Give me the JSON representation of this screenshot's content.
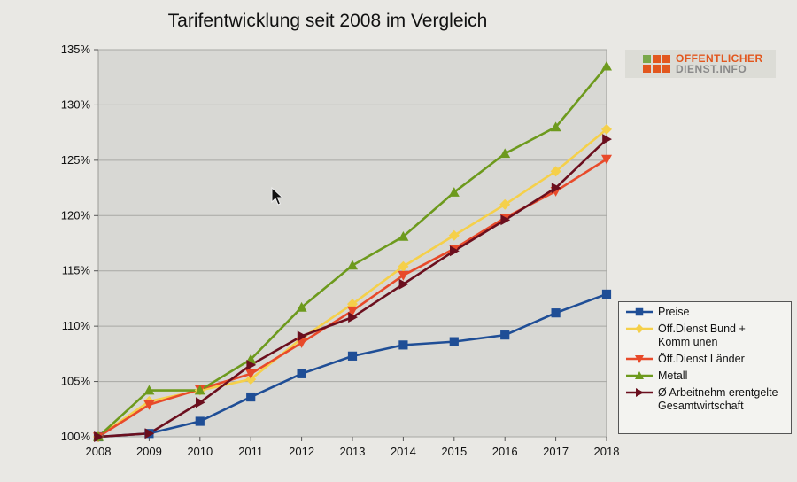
{
  "logo": {
    "line1": "OFFENTLICHER",
    "line2": "DIENST.INFO"
  },
  "chart_data": {
    "type": "line",
    "title": "Tarifentwicklung seit 2008 im Vergleich",
    "xlabel": "",
    "ylabel": "",
    "x": [
      "2008",
      "2009",
      "2010",
      "2011",
      "2012",
      "2013",
      "2014",
      "2015",
      "2016",
      "2017",
      "2018"
    ],
    "y_ticks": [
      "100%",
      "105%",
      "110%",
      "115%",
      "120%",
      "125%",
      "130%",
      "135%"
    ],
    "ylim": [
      100,
      135
    ],
    "grid": true,
    "legend_position": "right-bottom",
    "series": [
      {
        "name": "Preise",
        "color": "#1f4e96",
        "marker": "square",
        "values": [
          100,
          100.3,
          101.4,
          103.6,
          105.7,
          107.3,
          108.3,
          108.6,
          109.2,
          111.2,
          112.9
        ]
      },
      {
        "name": "Öff.Dienst Bund +\nKomm unen",
        "color": "#f5d04a",
        "marker": "diamond",
        "values": [
          100,
          103.2,
          104.2,
          105.2,
          108.9,
          112.0,
          115.4,
          118.2,
          121.0,
          124.0,
          127.8
        ]
      },
      {
        "name": "Öff.Dienst Länder",
        "color": "#e84a2a",
        "marker": "triangle-down",
        "values": [
          100,
          102.9,
          104.3,
          105.7,
          108.5,
          111.4,
          114.6,
          117.0,
          119.8,
          122.2,
          125.1
        ]
      },
      {
        "name": "Metall",
        "color": "#6d9a1d",
        "marker": "triangle-up",
        "values": [
          100,
          104.2,
          104.2,
          107.0,
          111.7,
          115.5,
          118.1,
          122.1,
          125.6,
          128.0,
          133.5
        ]
      },
      {
        "name": "Ø Arbeitnehm erentgelte\nGesamtwirtschaft",
        "color": "#6b0f1e",
        "marker": "triangle-right",
        "values": [
          100,
          100.3,
          103.1,
          106.5,
          109.1,
          110.8,
          113.8,
          116.8,
          119.6,
          122.5,
          126.9
        ]
      }
    ]
  }
}
